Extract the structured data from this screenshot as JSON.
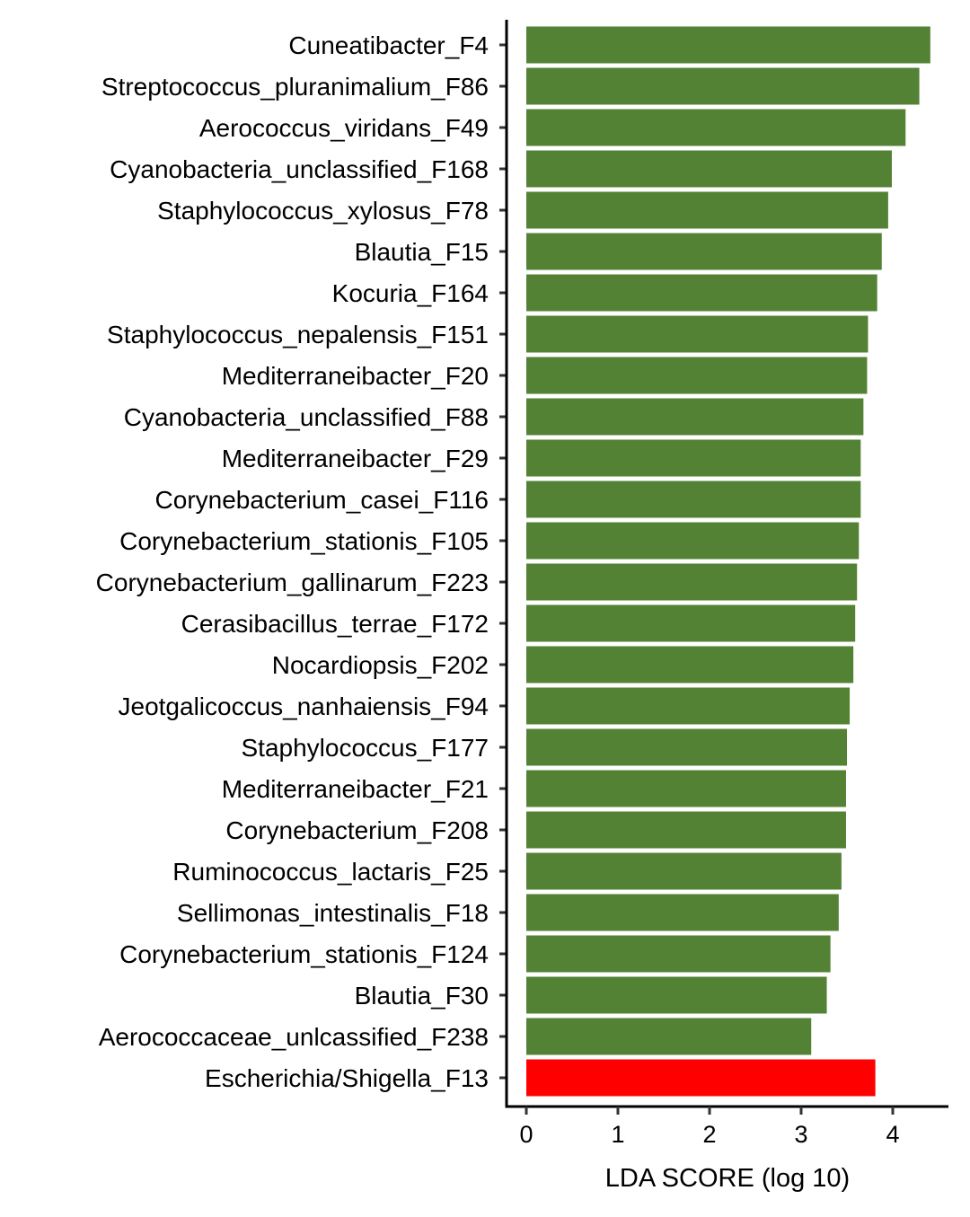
{
  "chart_data": {
    "type": "bar",
    "orientation": "horizontal",
    "title": "",
    "xlabel": "LDA SCORE (log 10)",
    "ylabel": "",
    "xlim": [
      -0.2,
      4.6
    ],
    "xticks": [
      0,
      1,
      2,
      3,
      4
    ],
    "grid": false,
    "legend": "none",
    "categories": [
      "Cuneatibacter_F4",
      "Streptococcus_pluranimalium_F86",
      "Aerococcus_viridans_F49",
      "Cyanobacteria_unclassified_F168",
      "Staphylococcus_xylosus_F78",
      "Blautia_F15",
      "Kocuria_F164",
      "Staphylococcus_nepalensis_F151",
      "Mediterraneibacter_F20",
      "Cyanobacteria_unclassified_F88",
      "Mediterraneibacter_F29",
      "Corynebacterium_casei_F116",
      "Corynebacterium_stationis_F105",
      "Corynebacterium_gallinarum_F223",
      "Cerasibacillus_terrae_F172",
      "Nocardiopsis_F202",
      "Jeotgalicoccus_nanhaiensis_F94",
      "Staphylococcus_F177",
      "Mediterraneibacter_F21",
      "Corynebacterium_F208",
      "Ruminococcus_lactaris_F25",
      "Sellimonas_intestinalis_F18",
      "Corynebacterium_stationis_F124",
      "Blautia_F30",
      "Aerococcaceae_unlcassified_F238",
      "Escherichia/Shigella_F13"
    ],
    "values": [
      4.41,
      4.29,
      4.14,
      3.99,
      3.95,
      3.88,
      3.83,
      3.73,
      3.72,
      3.68,
      3.65,
      3.65,
      3.63,
      3.61,
      3.59,
      3.57,
      3.53,
      3.5,
      3.49,
      3.49,
      3.44,
      3.41,
      3.32,
      3.28,
      3.11,
      3.81
    ],
    "colors": [
      "#548235",
      "#548235",
      "#548235",
      "#548235",
      "#548235",
      "#548235",
      "#548235",
      "#548235",
      "#548235",
      "#548235",
      "#548235",
      "#548235",
      "#548235",
      "#548235",
      "#548235",
      "#548235",
      "#548235",
      "#548235",
      "#548235",
      "#548235",
      "#548235",
      "#548235",
      "#548235",
      "#548235",
      "#548235",
      "#ff0000"
    ]
  }
}
